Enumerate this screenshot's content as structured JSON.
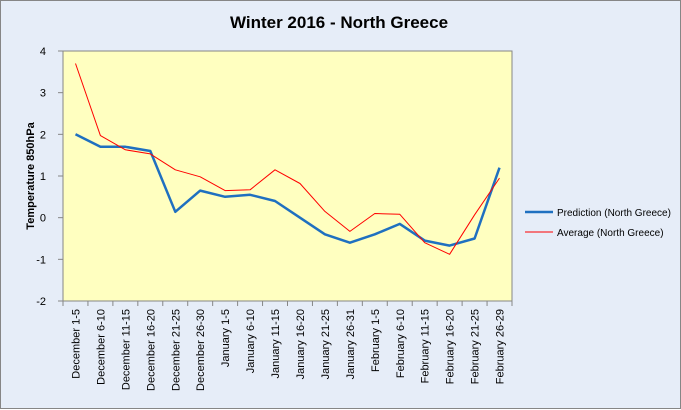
{
  "chart_data": {
    "type": "line",
    "title": "Winter 2016 - North Greece",
    "xlabel": "",
    "ylabel": "Temperature 850hPa",
    "ylim": [
      -2,
      4
    ],
    "yticks": [
      4,
      3,
      2,
      1,
      0,
      -1,
      -2
    ],
    "grid": false,
    "legend_position": "right",
    "background_color": "#ffffc0",
    "categories": [
      "December 1-5",
      "December 6-10",
      "December 11-15",
      "December 16-20",
      "December 21-25",
      "December 26-30",
      "January 1-5",
      "January 6-10",
      "January 11-15",
      "January 16-20",
      "January 21-25",
      "January 26-31",
      "February 1-5",
      "February 6-10",
      "February 11-15",
      "February 16-20",
      "February 21-25",
      "February 26-29"
    ],
    "series": [
      {
        "name": "Prediction (North Greece)",
        "color": "#1f70c0",
        "values": [
          2.0,
          1.7,
          1.7,
          1.6,
          0.14,
          0.65,
          0.5,
          0.55,
          0.4,
          0.0,
          -0.4,
          -0.6,
          -0.4,
          -0.15,
          -0.55,
          -0.67,
          -0.5,
          1.2
        ]
      },
      {
        "name": "Average (North Greece)",
        "color": "#ff0000",
        "values": [
          3.7,
          1.97,
          1.63,
          1.53,
          1.15,
          0.98,
          0.65,
          0.67,
          1.15,
          0.82,
          0.15,
          -0.33,
          0.1,
          0.08,
          -0.6,
          -0.88,
          0.07,
          0.95
        ]
      }
    ]
  }
}
